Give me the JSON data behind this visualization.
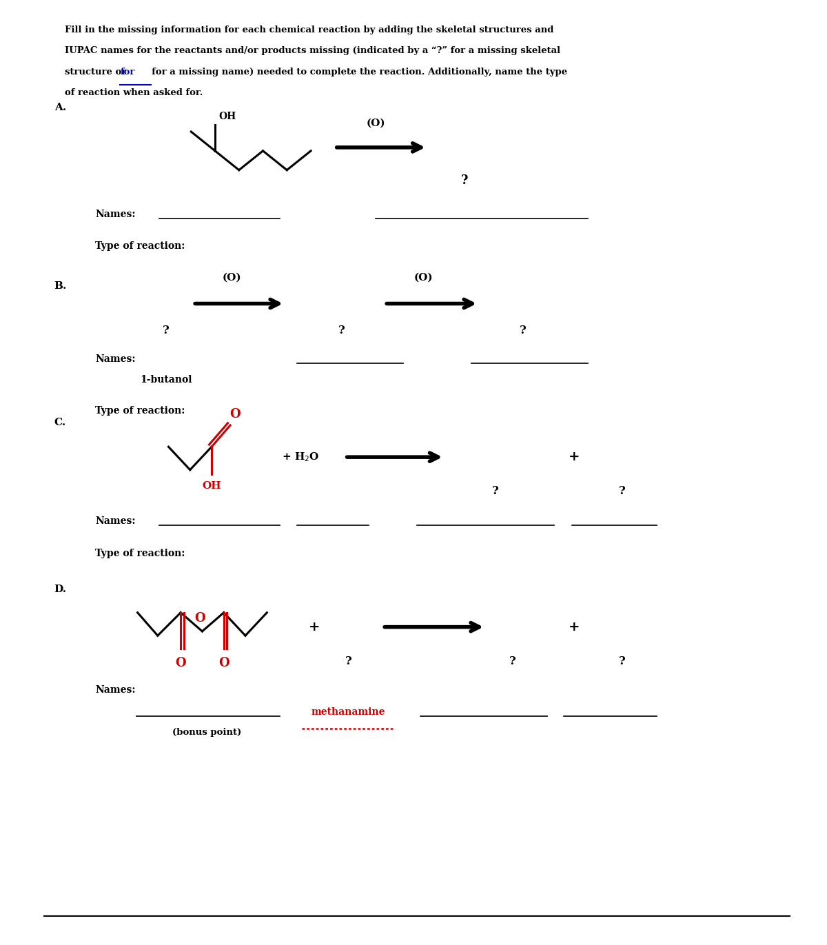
{
  "bg_color": "#ffffff",
  "text_color": "#000000",
  "red_color": "#cc0000",
  "blue_color": "#0000cc",
  "title_line1": "Fill in the missing information for each chemical reaction by adding the skeletal structures and",
  "title_line2": "IUPAC names for the reactants and/or products missing (indicated by a “?” for a missing skeletal",
  "title_line3": "structure or        for a missing name) needed to complete the reaction. Additionally, name the type",
  "title_line4": "of reaction when asked for.",
  "for_word": "for",
  "sec_A": "A.",
  "sec_B": "B.",
  "sec_C": "C.",
  "sec_D": "D.",
  "oxidant": "(O)",
  "names_label": "Names:",
  "type_label": "Type of reaction:",
  "q_mark": "?",
  "plus_h2o": "+ H₂O",
  "plus": "+",
  "name_1butanol": "1-butanol",
  "name_methanamine": "methanamine",
  "bonus": "(bonus point)"
}
